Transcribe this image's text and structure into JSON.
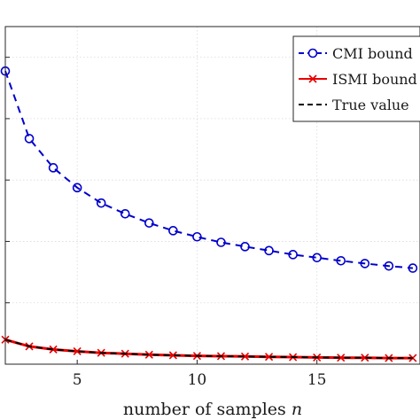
{
  "chart_data": {
    "type": "line",
    "xlabel": "number of samples",
    "xlabel_var": "n",
    "xlim": [
      2,
      19.3
    ],
    "xticks": [
      5,
      10,
      15
    ],
    "grid": true,
    "legend_position": "top-right",
    "x": [
      2,
      3,
      4,
      5,
      6,
      7,
      8,
      9,
      10,
      11,
      12,
      13,
      14,
      15,
      16,
      17,
      18,
      19
    ],
    "series": [
      {
        "name": "CMI bound",
        "color": "#0000cc",
        "linestyle": "dashed",
        "marker": "circle",
        "values": [
          0.955,
          0.735,
          0.64,
          0.575,
          0.525,
          0.49,
          0.46,
          0.435,
          0.415,
          0.397,
          0.383,
          0.37,
          0.357,
          0.347,
          0.337,
          0.328,
          0.32,
          0.313
        ]
      },
      {
        "name": "ISMI bound",
        "color": "#e60000",
        "linestyle": "solid",
        "marker": "x",
        "values": [
          0.08,
          0.058,
          0.048,
          0.042,
          0.037,
          0.034,
          0.031,
          0.029,
          0.027,
          0.026,
          0.025,
          0.024,
          0.023,
          0.022,
          0.021,
          0.021,
          0.02,
          0.02
        ]
      },
      {
        "name": "True value",
        "color": "#000000",
        "linestyle": "dashed",
        "marker": "none",
        "values": [
          0.08,
          0.058,
          0.048,
          0.042,
          0.037,
          0.034,
          0.031,
          0.029,
          0.027,
          0.026,
          0.025,
          0.024,
          0.023,
          0.022,
          0.021,
          0.021,
          0.02,
          0.02
        ]
      }
    ]
  }
}
